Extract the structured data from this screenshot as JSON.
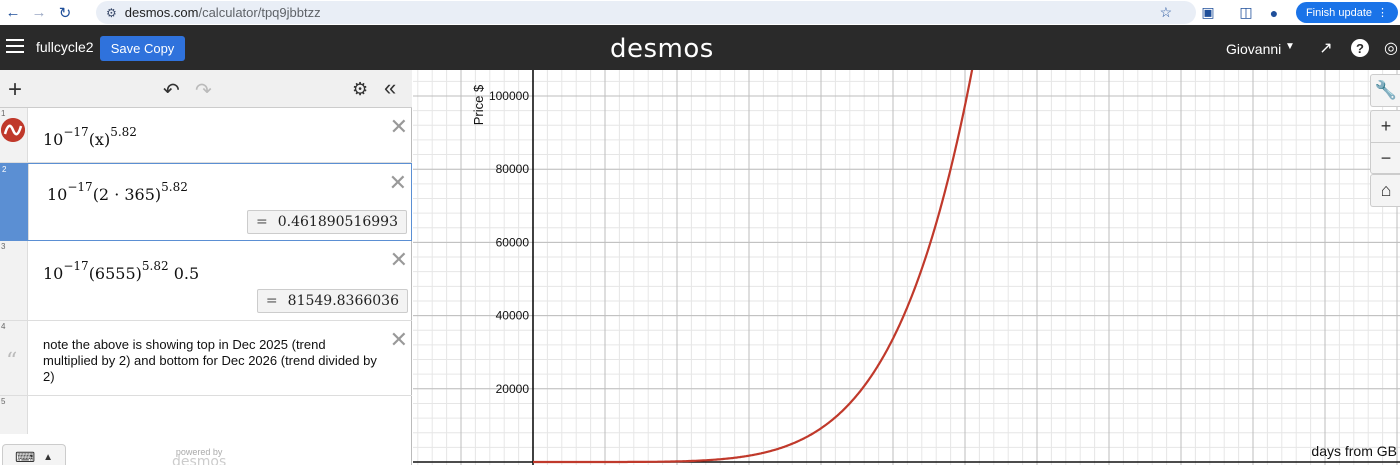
{
  "browser": {
    "url_host": "desmos.com",
    "url_path": "/calculator/tpq9jbbtzz",
    "finish_update": "Finish update"
  },
  "header": {
    "graph_title": "fullcycle2",
    "save_label": "Save Copy",
    "logo": "desmos",
    "user": "Giovanni"
  },
  "expressions": [
    {
      "num": "1",
      "base": "10",
      "exp1": "−17",
      "arg": "(x)",
      "exp2": "5.82",
      "tail": "",
      "result": ""
    },
    {
      "num": "2",
      "base": "10",
      "exp1": "−17",
      "arg": "(2 · 365)",
      "exp2": "5.82",
      "tail": "",
      "result": "0.461890516993"
    },
    {
      "num": "3",
      "base": "10",
      "exp1": "−17",
      "arg": "(6555)",
      "exp2": "5.82",
      "tail": "0.5",
      "result": "81549.8366036"
    },
    {
      "num": "4",
      "note": "note the above is showing top in Dec 2025 (trend multiplied by 2) and bottom for Dec 2026 (trend divided by 2)"
    },
    {
      "num": "5"
    }
  ],
  "footer": {
    "powered_by": "powered by",
    "powered_logo": "desmos"
  },
  "chart_data": {
    "type": "line",
    "xlabel": "days from GB",
    "ylabel": "Price $",
    "y_ticks": [
      20000,
      40000,
      60000,
      80000,
      100000
    ],
    "ylim": [
      -700,
      108000
    ],
    "grid": true,
    "series": [
      {
        "function": "10^-17 * x^5.82",
        "color": "#c0392b"
      }
    ]
  },
  "colors": {
    "accent": "#2f72dc",
    "curve": "#c0392b",
    "header": "#2a2a2a"
  }
}
